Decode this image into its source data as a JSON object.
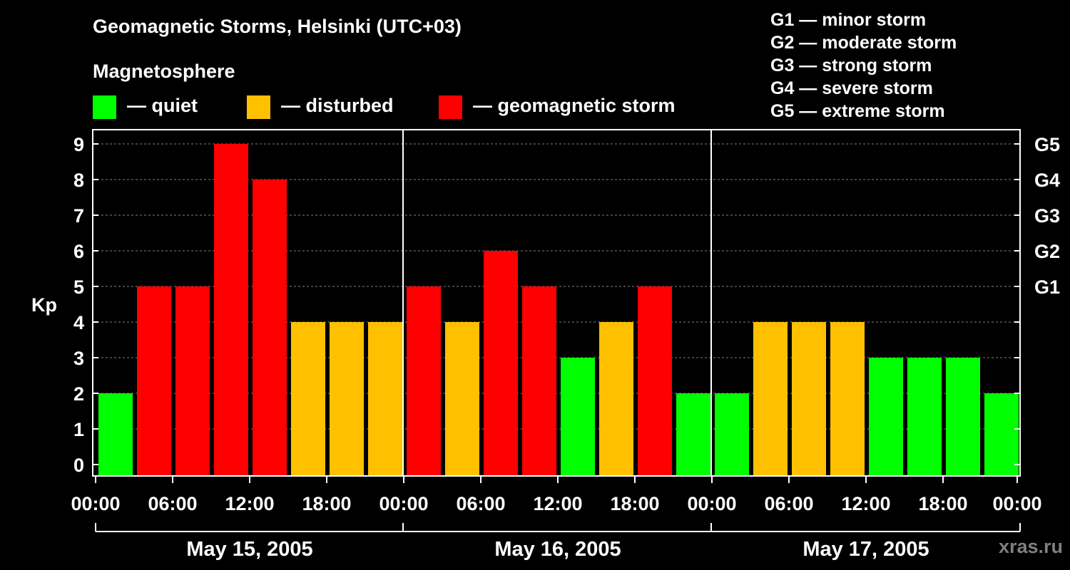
{
  "title": "Geomagnetic Storms, Helsinki (UTC+03)",
  "legend": {
    "heading": "Magnetosphere",
    "items": [
      {
        "label": "— quiet",
        "color": "#00ff00"
      },
      {
        "label": "— disturbed",
        "color": "#ffc000"
      },
      {
        "label": "— geomagnetic storm",
        "color": "#ff0000"
      }
    ]
  },
  "scale_legend": [
    "G1 — minor storm",
    "G2 — moderate storm",
    "G3 — strong storm",
    "G4 — severe storm",
    "G5 — extreme storm"
  ],
  "watermark": "xras.ru",
  "chart_data": {
    "type": "bar",
    "ylabel": "Kp",
    "ylim": [
      0,
      9
    ],
    "yticks": [
      "0",
      "1",
      "2",
      "3",
      "4",
      "5",
      "6",
      "7",
      "8",
      "9"
    ],
    "right_ticks": [
      {
        "kp": 5,
        "label": "G1"
      },
      {
        "kp": 6,
        "label": "G2"
      },
      {
        "kp": 7,
        "label": "G3"
      },
      {
        "kp": 8,
        "label": "G4"
      },
      {
        "kp": 9,
        "label": "G5"
      }
    ],
    "grid": "dashed horizontal",
    "xtick_labels": [
      "00:00",
      "06:00",
      "12:00",
      "18:00",
      "00:00",
      "06:00",
      "12:00",
      "18:00",
      "00:00",
      "06:00",
      "12:00",
      "18:00",
      "00:00"
    ],
    "days": [
      "May 15, 2005",
      "May 16, 2005",
      "May 17, 2005"
    ],
    "interval_hours": 3,
    "values": [
      2,
      5,
      5,
      9,
      8,
      4,
      4,
      4,
      5,
      4,
      6,
      5,
      3,
      4,
      5,
      2,
      2,
      4,
      4,
      4,
      3,
      3,
      3,
      2
    ],
    "colors": {
      "quiet": "#00ff00",
      "disturbed": "#ffc000",
      "storm": "#ff0000"
    },
    "thresholds": {
      "quiet_max": 3,
      "disturbed_max": 4
    }
  }
}
